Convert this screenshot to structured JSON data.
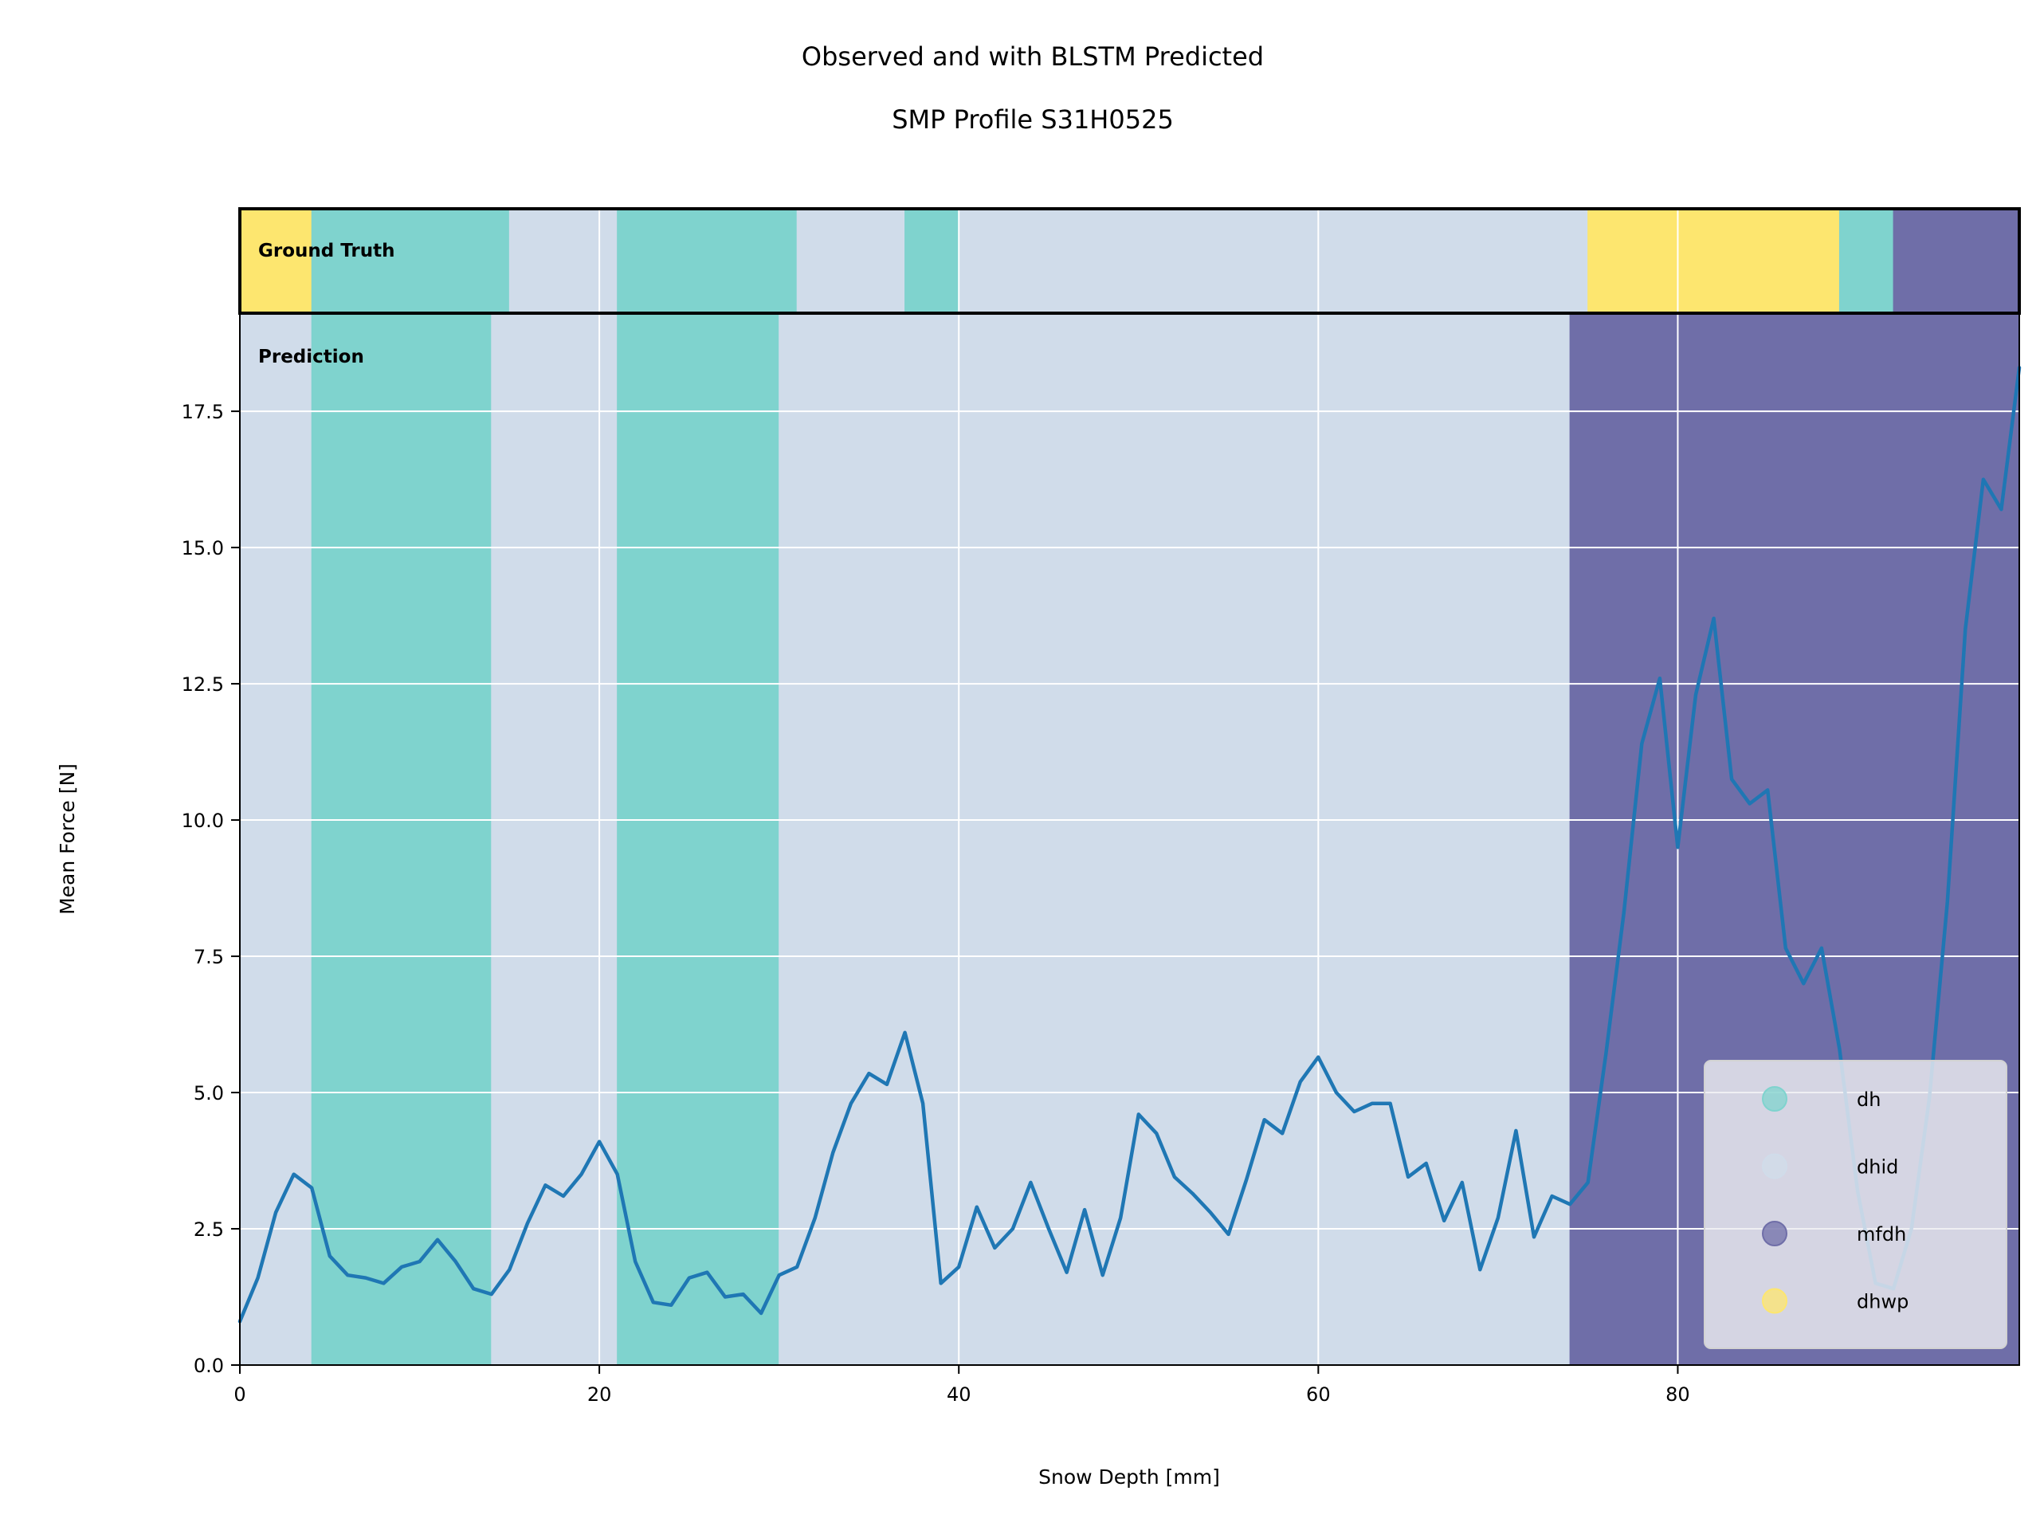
{
  "chart_data": {
    "type": "line",
    "title": "Observed and with BLSTM Predicted",
    "subtitle": "SMP Profile S31H0525",
    "xlabel": "Snow Depth [mm]",
    "ylabel": "Mean Force [N]",
    "xlim": [
      0,
      99
    ],
    "ylim": [
      0,
      19.3
    ],
    "xticks": [
      0,
      20,
      40,
      60,
      80
    ],
    "xtick_labels": [
      "0",
      "20",
      "40",
      "60",
      "80"
    ],
    "yticks": [
      0,
      2.5,
      5,
      7.5,
      10,
      12.5,
      15,
      17.5
    ],
    "ytick_labels": [
      "0.0",
      "2.5",
      "5.0",
      "7.5",
      "10.0",
      "12.5",
      "15.0",
      "17.5"
    ],
    "grid": true,
    "colors": {
      "line": "#1f77b4",
      "dh": "#7fd3ce",
      "dhid": "#d0dcea",
      "mfdh": "#6f6ea8",
      "dhwp": "#fde66f"
    },
    "series": [
      {
        "x": [
          0,
          1,
          2,
          3,
          4,
          5,
          6,
          7,
          8,
          9,
          10,
          11,
          12,
          13,
          14,
          15,
          16,
          17,
          18,
          19,
          20,
          21,
          22,
          23,
          24,
          25,
          26,
          27,
          28,
          29,
          30,
          31,
          32,
          33,
          34,
          35,
          36,
          37,
          38,
          39,
          40,
          41,
          42,
          43,
          44,
          45,
          46,
          47,
          48,
          49,
          50,
          51,
          52,
          53,
          54,
          55,
          56,
          57,
          58,
          59,
          60,
          61,
          62,
          63,
          64,
          65,
          66,
          67,
          68,
          69,
          70,
          71,
          72,
          73,
          74,
          75,
          76,
          77,
          78,
          79,
          80,
          81,
          82,
          83,
          84,
          85,
          86,
          87,
          88,
          89,
          90,
          91,
          92,
          93,
          94,
          95,
          96,
          97,
          98,
          99
        ],
        "values": [
          0.8,
          1.6,
          2.8,
          3.5,
          3.25,
          2.0,
          1.65,
          1.6,
          1.5,
          1.8,
          1.9,
          2.3,
          1.9,
          1.4,
          1.3,
          1.75,
          2.6,
          3.3,
          3.1,
          3.5,
          4.1,
          3.5,
          1.9,
          1.15,
          1.1,
          1.6,
          1.7,
          1.25,
          1.3,
          0.95,
          1.65,
          1.8,
          2.7,
          3.9,
          4.8,
          5.35,
          5.15,
          6.1,
          4.8,
          1.5,
          1.8,
          2.9,
          2.15,
          2.5,
          3.35,
          2.5,
          1.7,
          2.85,
          1.65,
          2.7,
          4.6,
          4.25,
          3.45,
          3.15,
          2.8,
          2.4,
          3.4,
          4.5,
          4.25,
          5.2,
          5.65,
          5.0,
          4.65,
          4.8,
          4.8,
          3.45,
          3.7,
          2.65,
          3.35,
          1.75,
          2.7,
          4.3,
          2.35,
          3.1,
          2.95,
          3.35,
          5.7,
          8.3,
          11.4,
          12.6,
          9.5,
          12.3,
          13.7,
          10.75,
          10.3,
          10.55,
          7.65,
          7.0,
          7.65,
          5.8,
          3.2,
          1.5,
          1.4,
          2.5,
          4.9,
          8.5,
          13.5,
          16.25,
          15.7,
          18.3
        ]
      }
    ],
    "ground_truth_label": "Ground Truth",
    "prediction_label": "Prediction",
    "ground_truth_segments": [
      {
        "cls": "dhwp",
        "from": 0,
        "to": 4
      },
      {
        "cls": "dh",
        "from": 4,
        "to": 15
      },
      {
        "cls": "dhid",
        "from": 15,
        "to": 21
      },
      {
        "cls": "dh",
        "from": 21,
        "to": 31
      },
      {
        "cls": "dhid",
        "from": 31,
        "to": 37
      },
      {
        "cls": "dh",
        "from": 37,
        "to": 40
      },
      {
        "cls": "dhid",
        "from": 40,
        "to": 75
      },
      {
        "cls": "dhwp",
        "from": 75,
        "to": 89
      },
      {
        "cls": "dh",
        "from": 89,
        "to": 92
      },
      {
        "cls": "mfdh",
        "from": 92,
        "to": 99
      }
    ],
    "prediction_segments": [
      {
        "cls": "dhid",
        "from": 0,
        "to": 4
      },
      {
        "cls": "dh",
        "from": 4,
        "to": 14
      },
      {
        "cls": "dhid",
        "from": 14,
        "to": 21
      },
      {
        "cls": "dh",
        "from": 21,
        "to": 30
      },
      {
        "cls": "dhid",
        "from": 30,
        "to": 74
      },
      {
        "cls": "mfdh",
        "from": 74,
        "to": 99
      }
    ],
    "legend": {
      "placement": "lower-right",
      "entries": [
        {
          "label": "dh",
          "cls": "dh"
        },
        {
          "label": "dhid",
          "cls": "dhid"
        },
        {
          "label": "mfdh",
          "cls": "mfdh"
        },
        {
          "label": "dhwp",
          "cls": "dhwp"
        }
      ]
    }
  }
}
